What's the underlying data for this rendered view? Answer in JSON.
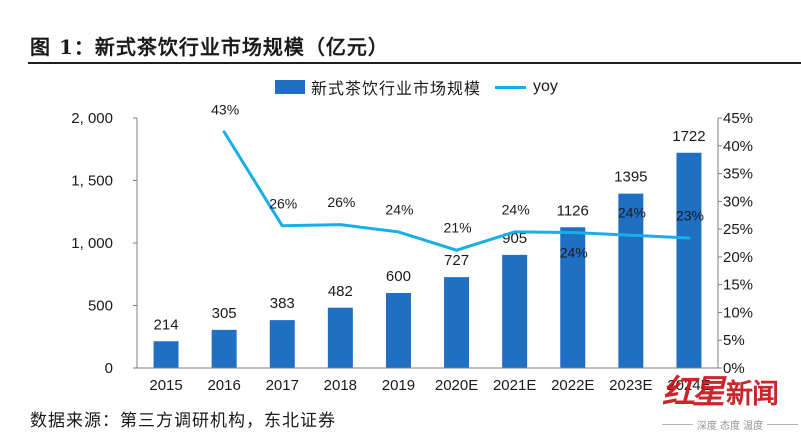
{
  "chart_data": {
    "type": "bar",
    "title": "图 1：新式茶饮行业市场规模（亿元）",
    "categories": [
      "2015",
      "2016",
      "2017",
      "2018",
      "2019",
      "2020E",
      "2021E",
      "2022E",
      "2023E",
      "2024E"
    ],
    "series": [
      {
        "name": "新式茶饮行业市场规模",
        "values": [
          214,
          305,
          383,
          482,
          600,
          727,
          905,
          1126,
          1395,
          1722
        ],
        "color": "#1f6fc2",
        "as_line": false,
        "secondary_axis": false
      },
      {
        "name": "yoy",
        "values": [
          null,
          42.5,
          25.6,
          25.8,
          24.5,
          21.2,
          24.5,
          24.4,
          23.9,
          23.4
        ],
        "labels": [
          null,
          "43%",
          "26%",
          "26%",
          "24%",
          "21%",
          "24%",
          "24%",
          "24%",
          "23%"
        ],
        "color": "#1aaee8",
        "as_line": true,
        "secondary_axis": true
      }
    ],
    "y_left": {
      "range": [
        0,
        2000
      ],
      "ticks": [
        0,
        500,
        1000,
        1500,
        2000
      ],
      "tick_labels": [
        "0",
        "500",
        "1, 000",
        "1, 500",
        "2, 000"
      ]
    },
    "y_right": {
      "range": [
        0,
        45
      ],
      "ticks": [
        0,
        5,
        10,
        15,
        20,
        25,
        30,
        35,
        40,
        45
      ],
      "tick_labels": [
        "0%",
        "5%",
        "10%",
        "15%",
        "20%",
        "25%",
        "30%",
        "35%",
        "40%",
        "45%"
      ]
    },
    "grid": false,
    "axis_color": "#7f7f7f"
  },
  "footer": {
    "source": "数据来源：第三方调研机构，东北证券"
  },
  "watermark": {
    "logo_part1": "红星",
    "logo_part2": "新闻",
    "tagline": "深度 态度 温度",
    "color": "#c8161d"
  }
}
